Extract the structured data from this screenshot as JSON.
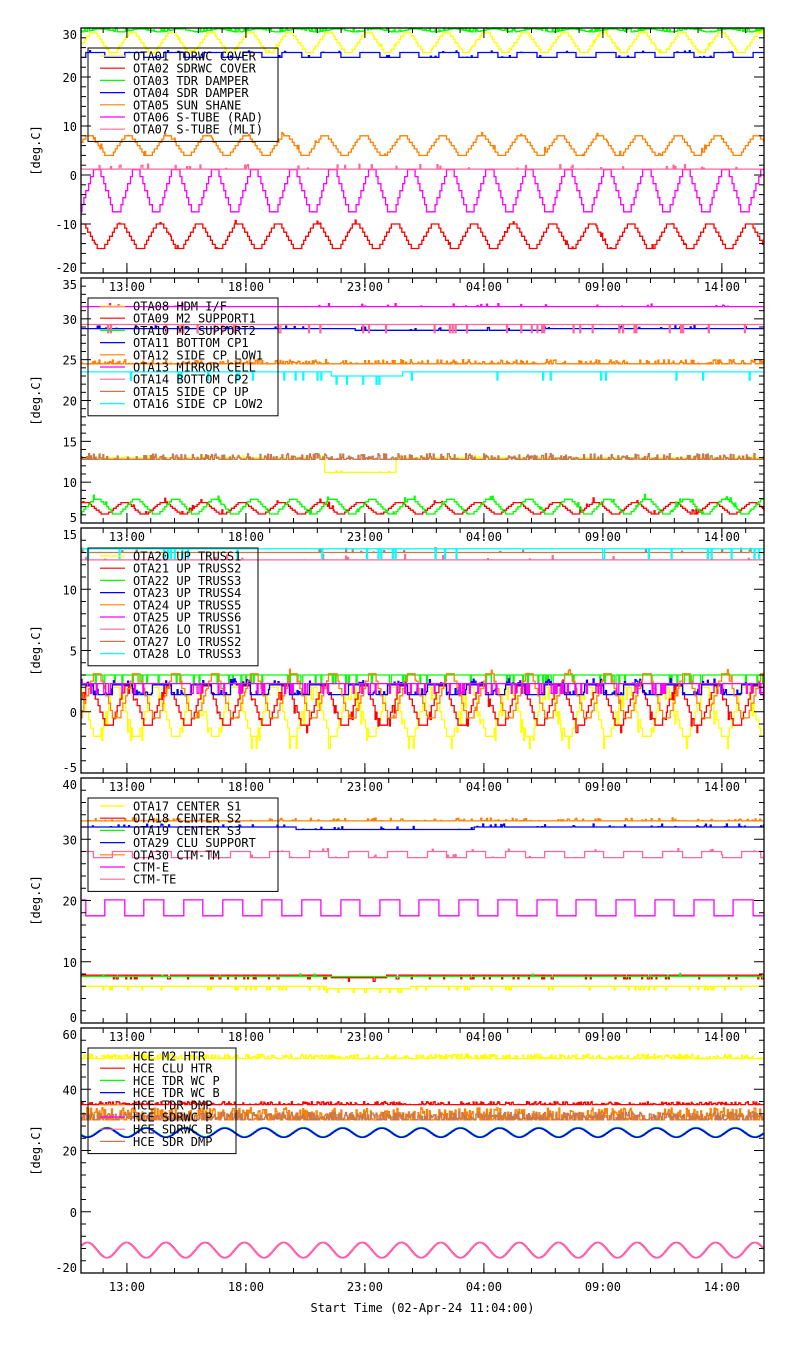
{
  "chart_data": {
    "type": "line",
    "xlabel": "Start Time (02-Apr-24 11:04:00)",
    "x_unit": "hours since start",
    "xlim": [
      0,
      28.7
    ],
    "x_ticks": [
      {
        "label": "13:00",
        "value": 1.93
      },
      {
        "label": "18:00",
        "value": 6.93
      },
      {
        "label": "23:00",
        "value": 11.93
      },
      {
        "label": "04:00",
        "value": 16.93
      },
      {
        "label": "09:00",
        "value": 21.93
      },
      {
        "label": "14:00",
        "value": 26.93
      }
    ],
    "colors": {
      "yellow": "#ffff00",
      "red": "#ff0000",
      "green": "#00ff00",
      "blue": "#0000ff",
      "orange": "#ff8000",
      "magenta": "#ff00ff",
      "pink": "#ff6699",
      "brown": "#c87850",
      "cyan": "#00ffff"
    },
    "panels": [
      {
        "ylabel": "[deg.C]",
        "ylim": [
          -20,
          30
        ],
        "y_ticks": [
          -20,
          -10,
          0,
          10,
          20,
          30
        ],
        "legend": "top-left",
        "series": [
          {
            "name": "OTA01 TDRWC COVER",
            "color": "#ffff00",
            "base": 27,
            "amp": 2,
            "period": 1.65,
            "phase": 0.2,
            "noise": 0.5,
            "noiseProb": 0.05
          },
          {
            "name": "OTA02 SDRWC COVER",
            "color": "#ff0000",
            "base": -12.5,
            "amp": 2.5,
            "period": 1.65,
            "phase": 0.5,
            "noise": 0.8,
            "noiseProb": 0.03
          },
          {
            "name": "OTA03 TDR DAMPER",
            "color": "#00ff00",
            "base": 29.5,
            "amp": 0.3,
            "period": 1.65,
            "phase": 0,
            "noise": 1,
            "noiseProb": 0.35
          },
          {
            "name": "OTA04 SDR DAMPER",
            "color": "#0000ff",
            "base": 24.5,
            "amp": 0.5,
            "period": 1.65,
            "phase": 0.9,
            "square": true,
            "noise": 0.4,
            "noiseProb": 0.05
          },
          {
            "name": "OTA05 SUN SHANE",
            "color": "#ff8000",
            "base": 6,
            "amp": 2,
            "period": 1.65,
            "phase": 0.3,
            "noise": 1,
            "noiseProb": 0.04
          },
          {
            "name": "OTA06 S-TUBE (RAD)",
            "color": "#ff00ff",
            "base": -3.2,
            "amp": 4.3,
            "period": 1.65,
            "phase": 1.1,
            "noise": 0,
            "noiseProb": 0
          },
          {
            "name": "OTA07 S-TUBE (MLI)",
            "color": "#ff6699",
            "base": 1.2,
            "amp": 0,
            "period": 1.65,
            "phase": 0,
            "noise": 1,
            "noiseProb": 0.05
          }
        ]
      },
      {
        "ylabel": "[deg.C]",
        "ylim": [
          5,
          35
        ],
        "y_ticks": [
          5,
          10,
          15,
          20,
          25,
          30,
          35
        ],
        "legend": "top-left",
        "series": [
          {
            "name": "OTA08 HDM I/F",
            "color": "#ffff00",
            "base": 13,
            "amp": 0,
            "period": 1.65,
            "phase": 0,
            "noise": 0.3,
            "noiseProb": 0.05,
            "dip": [
              10.2,
              13.2,
              -1.8
            ]
          },
          {
            "name": "OTA09 M2 SUPPORT1",
            "color": "#ff0000",
            "base": 6.8,
            "amp": 0.7,
            "period": 1.65,
            "phase": 0.4,
            "noise": 0.6,
            "noiseProb": 0.05
          },
          {
            "name": "OTA10 M2 SUPPORT2",
            "color": "#00ff00",
            "base": 7,
            "amp": 0.9,
            "period": 1.65,
            "phase": 0.1,
            "noise": 0.6,
            "noiseProb": 0.05
          },
          {
            "name": "OTA11 BOTTOM CP1",
            "color": "#0000ff",
            "base": 28.8,
            "amp": 0,
            "period": 1.65,
            "phase": 0,
            "noise": 0.4,
            "noiseProb": 0.04,
            "dip": [
              11.5,
              19.5,
              -0.2
            ]
          },
          {
            "name": "OTA12 SIDE CP LOW1",
            "color": "#ff8000",
            "base": 24.5,
            "amp": 0,
            "period": 1.65,
            "phase": 0,
            "noise": 0.5,
            "noiseProb": 0.3
          },
          {
            "name": "OTA13 MIRROR CELL",
            "color": "#ff00ff",
            "base": 31.5,
            "amp": 0,
            "period": 1.65,
            "phase": 0,
            "noise": 0.4,
            "noiseProb": 0.05
          },
          {
            "name": "OTA14 BOTTOM CP2",
            "color": "#ff6699",
            "base": 29.3,
            "amp": 0,
            "period": 1.65,
            "phase": 0,
            "noise": -1,
            "noiseProb": 0.05
          },
          {
            "name": "OTA15 SIDE CP UP",
            "color": "#c87850",
            "base": 12.8,
            "amp": 0,
            "period": 1.65,
            "phase": 0,
            "noise": 0.7,
            "noiseProb": 0.4
          },
          {
            "name": "OTA16 SIDE CP LOW2",
            "color": "#00ffff",
            "base": 23.5,
            "amp": 0,
            "period": 1.65,
            "phase": 0,
            "noise": -1,
            "noiseProb": 0.04,
            "dip": [
              10.5,
              13.5,
              -0.5
            ]
          }
        ]
      },
      {
        "ylabel": "[deg.C]",
        "ylim": [
          -5,
          15
        ],
        "y_ticks": [
          -5,
          0,
          5,
          10,
          15
        ],
        "legend": "top-left",
        "series": [
          {
            "name": "OTA20 UP TRUSS1",
            "color": "#ffff00",
            "base": 0,
            "amp": 2,
            "period": 1.65,
            "phase": 0.6,
            "noise": -1,
            "noiseProb": 0.1
          },
          {
            "name": "OTA21 UP TRUSS2",
            "color": "#ff0000",
            "base": 0.5,
            "amp": 1.6,
            "period": 1.65,
            "phase": 0.3,
            "noise": -0.6,
            "noiseProb": 0.05
          },
          {
            "name": "OTA22 UP TRUSS3",
            "color": "#00ff00",
            "base": 3,
            "amp": 0,
            "period": 1.65,
            "phase": 0,
            "noise": -0.7,
            "noiseProb": 0.1
          },
          {
            "name": "OTA23 UP TRUSS4",
            "color": "#0000ff",
            "base": 1.8,
            "amp": 0.4,
            "period": 1.65,
            "phase": 0.2,
            "square": true,
            "noise": 0.5,
            "noiseProb": 0.25
          },
          {
            "name": "OTA24 UP TRUSS5",
            "color": "#ff8000",
            "base": 1.3,
            "amp": 1.8,
            "period": 1.65,
            "phase": 0.1,
            "noise": 0.5,
            "noiseProb": 0.05
          },
          {
            "name": "OTA25 UP TRUSS6",
            "color": "#ff00ff",
            "base": 2.3,
            "amp": 0,
            "period": 1.65,
            "phase": 0,
            "noise": -0.8,
            "noiseProb": 0.15
          },
          {
            "name": "OTA26 LO TRUSS1",
            "color": "#ff6699",
            "base": 12.4,
            "amp": 0,
            "period": 1.65,
            "phase": 0,
            "noise": 0.5,
            "noiseProb": 0.02
          },
          {
            "name": "OTA27 LO TRUSS2",
            "color": "#c87850",
            "base": 13,
            "amp": 0,
            "period": 1.65,
            "phase": 0,
            "noise": 0.4,
            "noiseProb": 0.03
          },
          {
            "name": "OTA28 LO TRUSS3",
            "color": "#00ffff",
            "base": 13.3,
            "amp": 0,
            "period": 1.65,
            "phase": 0,
            "noise": -0.8,
            "noiseProb": 0.04
          }
        ]
      },
      {
        "ylabel": "[deg.C]",
        "ylim": [
          0,
          40
        ],
        "y_ticks": [
          0,
          10,
          20,
          30,
          40
        ],
        "legend": "top-left",
        "series": [
          {
            "name": "OTA17 CENTER S1",
            "color": "#ffff00",
            "base": 6,
            "amp": 0,
            "period": 1.65,
            "phase": 0,
            "noise": -0.6,
            "noiseProb": 0.1,
            "dip": [
              10.3,
              13.8,
              -0.4
            ]
          },
          {
            "name": "OTA18 CENTER S2",
            "color": "#ff0000",
            "base": 7.8,
            "amp": 0,
            "period": 1.65,
            "phase": 0,
            "noise": -0.6,
            "noiseProb": 0.1,
            "dip": [
              10.5,
              12.8,
              -0.4
            ]
          },
          {
            "name": "OTA19 CENTER S3",
            "color": "#00ff00",
            "base": 7.6,
            "amp": 0,
            "period": 1.65,
            "phase": 0,
            "noise": 0.6,
            "noiseProb": 0.02
          },
          {
            "name": "OTA29 CLU SUPPORT",
            "color": "#0000ff",
            "base": 32,
            "amp": 0,
            "period": 1.65,
            "phase": 0,
            "noise": 0.5,
            "noiseProb": 0.1,
            "dip": [
              9,
              16.5,
              -0.4
            ]
          },
          {
            "name": "OTA30 CTM-TM",
            "color": "#ff8000",
            "base": 33,
            "amp": 0,
            "period": 1.65,
            "phase": 0,
            "noise": 0.5,
            "noiseProb": 0.15
          },
          {
            "name": "CTM-E",
            "color": "#ff00ff",
            "base": 18.8,
            "amp": 1.3,
            "period": 1.65,
            "phase": 0.4,
            "square": true,
            "noise": 0,
            "noiseProb": 0
          },
          {
            "name": "CTM-TE",
            "color": "#ff6699",
            "base": 27.5,
            "amp": 0.5,
            "period": 1.65,
            "phase": 0.2,
            "square": true,
            "noise": 0.5,
            "noiseProb": 0.05
          }
        ]
      },
      {
        "ylabel": "[deg.C]",
        "ylim": [
          -20,
          60
        ],
        "y_ticks": [
          -20,
          0,
          20,
          40,
          60
        ],
        "legend": "top-left",
        "series": [
          {
            "name": "HCE M2 HTR",
            "color": "#ffff00",
            "base": 50,
            "amp": 0,
            "period": 1.65,
            "phase": 0,
            "noise": 1.5,
            "noiseProb": 0.5
          },
          {
            "name": "HCE CLU HTR",
            "color": "#ff0000",
            "base": 35,
            "amp": 0,
            "period": 1.65,
            "phase": 0,
            "noise": 1,
            "noiseProb": 0.4
          },
          {
            "name": "HCE TDR WC P",
            "color": "#00ff00",
            "base": 26,
            "amp": 1.5,
            "period": 1.65,
            "phase": 0.6,
            "sine": true,
            "noise": 0,
            "noiseProb": 0
          },
          {
            "name": "HCE TDR WC B",
            "color": "#0000ff",
            "base": 25.8,
            "amp": 1.5,
            "period": 1.65,
            "phase": 0.6,
            "sine": true,
            "noise": 0,
            "noiseProb": 0
          },
          {
            "name": "HCE TDR DMP",
            "color": "#ff8000",
            "base": 30,
            "amp": 0,
            "period": 1.65,
            "phase": 0,
            "noise": 4,
            "noiseProb": 0.6
          },
          {
            "name": "HCE SDRWC P",
            "color": "#ff00ff",
            "base": -12.5,
            "amp": 2.5,
            "period": 1.65,
            "phase": 0.1,
            "sine": true,
            "noise": 0,
            "noiseProb": 0
          },
          {
            "name": "HCE SDRWC B",
            "color": "#ff6699",
            "base": -12.6,
            "amp": 2.5,
            "period": 1.65,
            "phase": 0.1,
            "sine": true,
            "noise": 0,
            "noiseProb": 0
          },
          {
            "name": "HCE SDR DMP",
            "color": "#c87850",
            "base": 30,
            "amp": 0,
            "period": 1.65,
            "phase": 0,
            "noise": 2.5,
            "noiseProb": 0.7
          }
        ]
      }
    ]
  }
}
